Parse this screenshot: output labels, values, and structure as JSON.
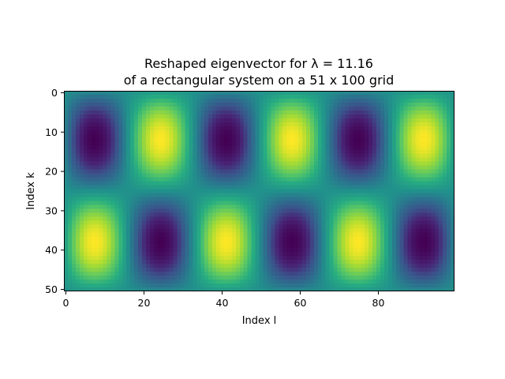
{
  "chart_data": {
    "type": "heatmap",
    "title_line1": "Reshaped eigenvector for λ = 11.16",
    "title_line2": "of a rectangular system on a 51 x 100 grid",
    "xlabel": "Index l",
    "ylabel": "Index k",
    "rows": 51,
    "cols": 100,
    "x_ticks": [
      "0",
      "20",
      "40",
      "60",
      "80"
    ],
    "x_tick_values": [
      0,
      20,
      40,
      60,
      80
    ],
    "y_ticks": [
      "0",
      "10",
      "20",
      "30",
      "40",
      "50"
    ],
    "y_tick_values": [
      0,
      10,
      20,
      30,
      40,
      50
    ],
    "xlim": [
      -0.5,
      99.5
    ],
    "ylim": [
      50.5,
      -0.5
    ],
    "colormap": "viridis",
    "mode_k": 2,
    "mode_l": 6,
    "pattern_note_top_row_starts": "dark",
    "colors": {
      "low": "#440154",
      "mid": "#21918c",
      "high": "#fde725"
    }
  }
}
